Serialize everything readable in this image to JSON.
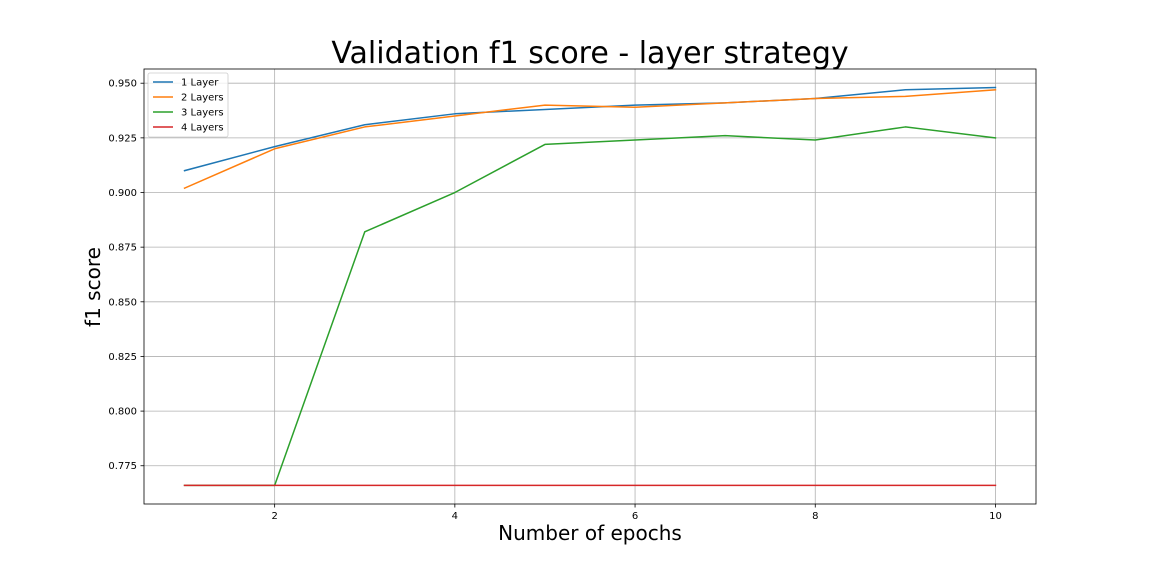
{
  "chart_data": {
    "type": "line",
    "title": "Validation f1 score - layer strategy",
    "xlabel": "Number of epochs",
    "ylabel": "f1 score",
    "x": [
      1,
      2,
      3,
      4,
      5,
      6,
      7,
      8,
      9,
      10
    ],
    "xlim": [
      0.55,
      10.45
    ],
    "ylim": [
      0.7575,
      0.9565
    ],
    "xticks": [
      2,
      4,
      6,
      8,
      10
    ],
    "yticks": [
      0.775,
      0.8,
      0.825,
      0.85,
      0.875,
      0.9,
      0.925,
      0.95
    ],
    "xtick_labels": [
      "2",
      "4",
      "6",
      "8",
      "10"
    ],
    "ytick_labels": [
      "0.775",
      "0.800",
      "0.825",
      "0.850",
      "0.875",
      "0.900",
      "0.925",
      "0.950"
    ],
    "grid": true,
    "legend_position": "top-left",
    "series": [
      {
        "name": "1 Layer",
        "color": "#1f77b4",
        "values": [
          0.91,
          0.921,
          0.931,
          0.936,
          0.938,
          0.94,
          0.941,
          0.943,
          0.947,
          0.948
        ]
      },
      {
        "name": "2 Layers",
        "color": "#ff7f0e",
        "values": [
          0.902,
          0.92,
          0.93,
          0.935,
          0.94,
          0.939,
          0.941,
          0.943,
          0.944,
          0.947
        ]
      },
      {
        "name": "3 Layers",
        "color": "#2ca02c",
        "values": [
          0.766,
          0.766,
          0.882,
          0.9,
          0.922,
          0.924,
          0.926,
          0.924,
          0.93,
          0.925
        ]
      },
      {
        "name": "4 Layers",
        "color": "#d62728",
        "values": [
          0.766,
          0.766,
          0.766,
          0.766,
          0.766,
          0.766,
          0.766,
          0.766,
          0.766,
          0.766
        ]
      }
    ]
  }
}
